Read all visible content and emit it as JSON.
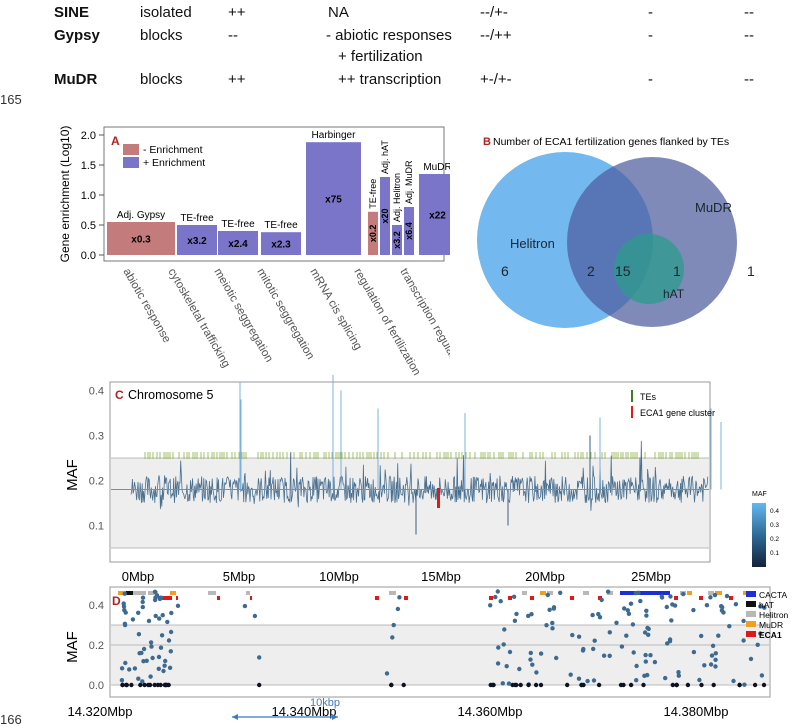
{
  "table": {
    "rows": [
      {
        "name": "SINE",
        "mode": "isolated",
        "c1": "++",
        "c2": "NA",
        "c3": "--/+-",
        "c4": "-",
        "c5": "--"
      },
      {
        "name": "Gypsy",
        "mode": "blocks",
        "c1": "--",
        "c2": "- abiotic responses",
        "c2b": "+ fertilization",
        "c3": "--/++",
        "c4": "-",
        "c5": "--"
      },
      {
        "name": "MuDR",
        "mode": "blocks",
        "c1": "++",
        "c2": "++ transcription",
        "c3": "+-/+-",
        "c4": "-",
        "c5": "--"
      }
    ]
  },
  "line_numbers": [
    "165",
    "166"
  ],
  "chart_data": [
    {
      "type": "bar",
      "panel": "A",
      "ylabel": "Gene enrichment (Log10)",
      "ylim": [
        0,
        2.0
      ],
      "yticks": [
        "0.0",
        "0.5",
        "1.0",
        "1.5",
        "2.0"
      ],
      "legend": {
        "minus": "- Enrichment",
        "plus": "+ Enrichment"
      },
      "colors": {
        "minus": "#c47b7b",
        "plus": "#7b75c9"
      },
      "categories": [
        "abiotic response",
        "cytoskeletal trafficking",
        "meiotic seggregation",
        "mitotic seggregation",
        "mRNA cis splicing",
        "regulation of fertilization",
        "transcription regulation"
      ],
      "bars": [
        {
          "cat": 0,
          "value": 0.55,
          "sign": "minus",
          "fold": "x0.3",
          "label": "Adj. Gypsy"
        },
        {
          "cat": 1,
          "value": 0.5,
          "sign": "plus",
          "fold": "x3.2",
          "label": "TE-free"
        },
        {
          "cat": 2,
          "value": 0.4,
          "sign": "plus",
          "fold": "x2.4",
          "label": "TE-free"
        },
        {
          "cat": 3,
          "value": 0.38,
          "sign": "plus",
          "fold": "x2.3",
          "label": "TE-free"
        },
        {
          "cat": 4,
          "value": 1.88,
          "sign": "plus",
          "fold": "x75",
          "label": "Harbinger"
        },
        {
          "cat": 5,
          "sub": 0,
          "value": 0.72,
          "sign": "minus",
          "fold": "x0.2",
          "label": "TE-free"
        },
        {
          "cat": 5,
          "sub": 1,
          "value": 1.3,
          "sign": "plus",
          "fold": "x20",
          "label": "Adj. hAT"
        },
        {
          "cat": 5,
          "sub": 2,
          "value": 0.5,
          "sign": "plus",
          "fold": "x3.2",
          "label": "Adj. Helitron"
        },
        {
          "cat": 5,
          "sub": 3,
          "value": 0.8,
          "sign": "plus",
          "fold": "x6.4",
          "label": "Adj. MuDR"
        },
        {
          "cat": 6,
          "value": 1.35,
          "sign": "plus",
          "fold": "x22",
          "label": "MuDR"
        }
      ]
    },
    {
      "type": "venn",
      "panel": "B",
      "title": "Number of ECA1 fertilization genes flanked by TEs",
      "sets": {
        "helitron": "Helitron",
        "mudr": "MuDR",
        "hat": "hAT"
      },
      "values": {
        "helitron_only": "6",
        "helitron_mudr": "2",
        "all": "15",
        "mudr_hat": "1",
        "mudr_only": "1"
      }
    },
    {
      "type": "line",
      "panel": "C",
      "title": "Chromosome 5",
      "ylabel": "MAF",
      "ylim": [
        0.0,
        0.5
      ],
      "yticks": [
        "0.1",
        "0.2",
        "0.3",
        "0.4",
        "0.5"
      ],
      "xticks": [
        "0Mbp",
        "5Mbp",
        "10Mbp",
        "15Mbp",
        "20Mbp",
        "25Mbp"
      ],
      "legend": {
        "tes": "TEs",
        "eca1": "ECA1 gene cluster"
      },
      "colorbar": {
        "title": "MAF",
        "ticks": [
          "0.4",
          "0.3",
          "0.2",
          "0.1"
        ]
      },
      "mean_maf": 0.18
    },
    {
      "type": "scatter",
      "panel": "D",
      "ylabel": "MAF",
      "ylim": [
        0.0,
        0.5
      ],
      "yticks": [
        "0.0",
        "0.2",
        "0.4"
      ],
      "xticks": [
        "14.320Mbp",
        "14.340Mbp",
        "14.360Mbp",
        "14.380Mbp"
      ],
      "scalebar": "10kbp",
      "legend": [
        {
          "name": "CACTA",
          "color": "#1a2fd8"
        },
        {
          "name": "hAT",
          "color": "#111111"
        },
        {
          "name": "Helitron",
          "color": "#b8b8b8"
        },
        {
          "name": "MuDR",
          "color": "#f0a020"
        },
        {
          "name": "ECA1",
          "color": "#e01818"
        }
      ]
    }
  ]
}
